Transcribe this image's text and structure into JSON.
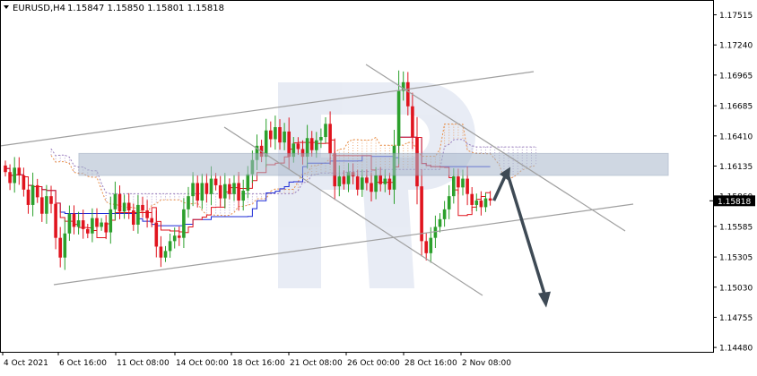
{
  "header": {
    "symbol_timeframe": "EURUSD,H4",
    "ohlc": "1.15847 1.15850 1.15801 1.15818"
  },
  "chart_data": {
    "type": "candlestick",
    "instrument": "EURUSD",
    "timeframe": "H4",
    "ylim": [
      1.1444,
      1.1765
    ],
    "y_ticks": [
      "1.17515",
      "1.17240",
      "1.16965",
      "1.16685",
      "1.16410",
      "1.16135",
      "1.15860",
      "1.15585",
      "1.15305",
      "1.15030",
      "1.14755",
      "1.14480"
    ],
    "x_ticks": [
      "4 Oct 2021",
      "6 Oct 16:00",
      "11 Oct 08:00",
      "14 Oct 00:00",
      "18 Oct 16:00",
      "21 Oct 08:00",
      "26 Oct 00:00",
      "28 Oct 16:00",
      "2 Nov 08:00"
    ],
    "current_price": "1.15818",
    "closes": [
      1.1608,
      1.1598,
      1.1612,
      1.1605,
      1.1592,
      1.1578,
      1.1596,
      1.1585,
      1.157,
      1.1586,
      1.1579,
      1.1548,
      1.153,
      1.1552,
      1.157,
      1.1558,
      1.1564,
      1.1556,
      1.1552,
      1.1566,
      1.1558,
      1.1562,
      1.1553,
      1.1574,
      1.1588,
      1.1572,
      1.158,
      1.1573,
      1.156,
      1.1578,
      1.1573,
      1.1566,
      1.1562,
      1.154,
      1.153,
      1.1536,
      1.1545,
      1.155,
      1.1548,
      1.1574,
      1.1586,
      1.1598,
      1.1582,
      1.1598,
      1.1588,
      1.1602,
      1.1596,
      1.1584,
      1.1597,
      1.1588,
      1.1598,
      1.1582,
      1.1591,
      1.1606,
      1.1619,
      1.1632,
      1.1622,
      1.1646,
      1.1638,
      1.1649,
      1.1635,
      1.1645,
      1.1622,
      1.1634,
      1.1629,
      1.1622,
      1.1639,
      1.1628,
      1.1637,
      1.164,
      1.1652,
      1.1625,
      1.1595,
      1.1604,
      1.1597,
      1.1608,
      1.1604,
      1.1592,
      1.1603,
      1.1598,
      1.159,
      1.1605,
      1.1597,
      1.1602,
      1.1592,
      1.1632,
      1.1682,
      1.169,
      1.1668,
      1.164,
      1.1595,
      1.1545,
      1.1534,
      1.1548,
      1.1558,
      1.1565,
      1.1574,
      1.1586,
      1.1604,
      1.1594,
      1.1602,
      1.1588,
      1.1578,
      1.1582,
      1.1576,
      1.1584,
      1.1582
    ],
    "projection": {
      "target_high": 1.1611,
      "target_low": 1.1486
    },
    "resistance_zone": [
      1.1605,
      1.1625
    ],
    "colors": {
      "bull": "#2ca02c",
      "bear": "#e0141e",
      "ichimoku_upper": "#e8904a",
      "ichimoku_lower": "#9a7fbd",
      "kijun": "#1e2bd6",
      "tenkan": "#e0141e",
      "channel": "#a0a0a0",
      "arrow": "#3e4a55",
      "zone": "#a8b8cc"
    }
  }
}
